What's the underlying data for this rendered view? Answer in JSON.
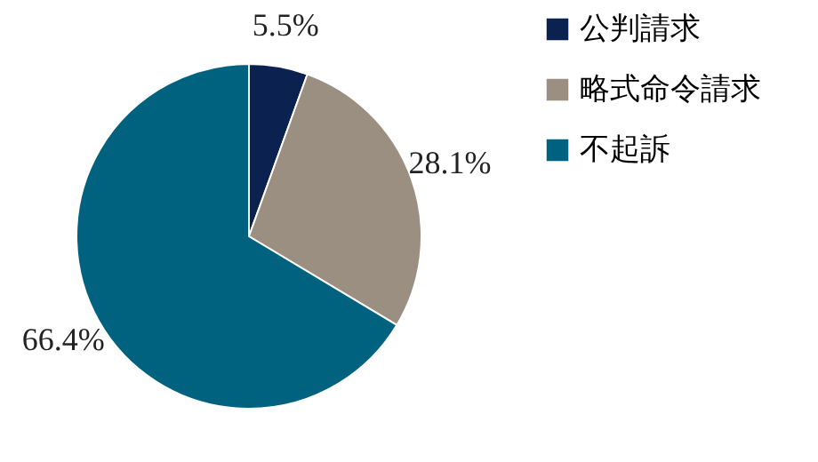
{
  "chart_data": {
    "type": "pie",
    "categories": [
      "公判請求",
      "略式命令請求",
      "不起訴"
    ],
    "values": [
      5.5,
      28.1,
      66.4
    ],
    "colors": [
      "#0b2150",
      "#9a8f80",
      "#00627e"
    ],
    "value_labels": [
      "5.5%",
      "28.1%",
      "66.4%"
    ],
    "legend": "right"
  }
}
